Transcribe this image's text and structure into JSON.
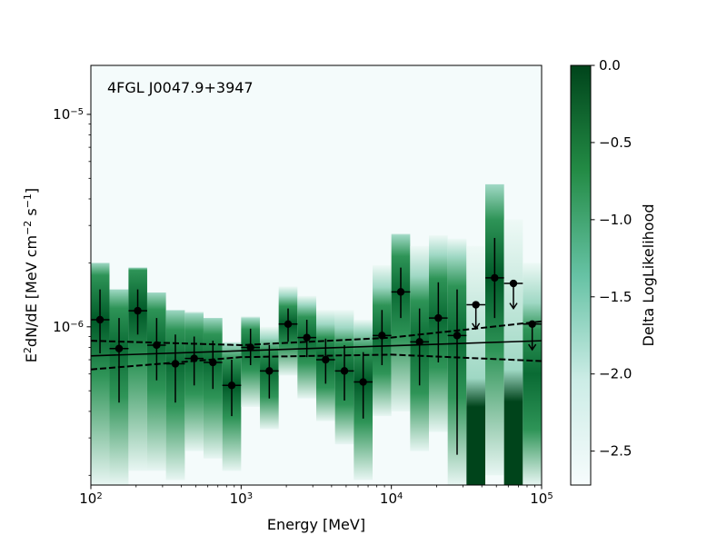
{
  "chart_data": {
    "type": "scatter",
    "title": "",
    "annotation": "4FGL J0047.9+3947",
    "xlabel": "Energy [MeV]",
    "ylabel_main": "E",
    "ylabel_sup1": "2",
    "ylabel_mid": "dN/dE [MeV cm",
    "ylabel_sup2": "−2",
    "ylabel_mid2": " s",
    "ylabel_sup3": "−1",
    "ylabel_end": "]",
    "x_scale": "log",
    "y_scale": "log",
    "xlim": [
      100,
      100000
    ],
    "ylim": [
      1.8e-07,
      1.7e-05
    ],
    "x_ticks": [
      {
        "value": 100,
        "base": "10",
        "exp": "2"
      },
      {
        "value": 1000,
        "base": "10",
        "exp": "3"
      },
      {
        "value": 10000,
        "base": "10",
        "exp": "4"
      },
      {
        "value": 100000,
        "base": "10",
        "exp": "5"
      }
    ],
    "y_ticks": [
      {
        "value": 1e-06,
        "base": "10",
        "exp": "−6"
      },
      {
        "value": 1e-05,
        "base": "10",
        "exp": "−5"
      }
    ],
    "points": [
      {
        "x": 115,
        "y": 1.08e-06,
        "ylo": 7.5e-07,
        "yhi": 1.5e-06,
        "xlo": 100,
        "xhi": 133,
        "ul": false
      },
      {
        "x": 154,
        "y": 7.9e-07,
        "ylo": 4.4e-07,
        "yhi": 1.1e-06,
        "xlo": 133,
        "xhi": 178,
        "ul": false
      },
      {
        "x": 205,
        "y": 1.19e-06,
        "ylo": 9.2e-07,
        "yhi": 1.5e-06,
        "xlo": 178,
        "xhi": 237,
        "ul": false
      },
      {
        "x": 274,
        "y": 8.2e-07,
        "ylo": 5.6e-07,
        "yhi": 1.1e-06,
        "xlo": 237,
        "xhi": 316,
        "ul": false
      },
      {
        "x": 365,
        "y": 6.7e-07,
        "ylo": 4.4e-07,
        "yhi": 9.2e-07,
        "xlo": 316,
        "xhi": 422,
        "ul": false
      },
      {
        "x": 487,
        "y": 7.1e-07,
        "ylo": 5.3e-07,
        "yhi": 9e-07,
        "xlo": 422,
        "xhi": 562,
        "ul": false
      },
      {
        "x": 649,
        "y": 6.8e-07,
        "ylo": 5.1e-07,
        "yhi": 8.6e-07,
        "xlo": 562,
        "xhi": 750,
        "ul": false
      },
      {
        "x": 866,
        "y": 5.3e-07,
        "ylo": 3.8e-07,
        "yhi": 7e-07,
        "xlo": 750,
        "xhi": 1000,
        "ul": false
      },
      {
        "x": 1155,
        "y": 8e-07,
        "ylo": 6.6e-07,
        "yhi": 9.8e-07,
        "xlo": 1000,
        "xhi": 1334,
        "ul": false
      },
      {
        "x": 1540,
        "y": 6.2e-07,
        "ylo": 4.6e-07,
        "yhi": 8.2e-07,
        "xlo": 1334,
        "xhi": 1778,
        "ul": false
      },
      {
        "x": 2054,
        "y": 1.03e-06,
        "ylo": 8.5e-07,
        "yhi": 1.22e-06,
        "xlo": 1778,
        "xhi": 2371,
        "ul": false
      },
      {
        "x": 2738,
        "y": 8.9e-07,
        "ylo": 7.2e-07,
        "yhi": 1.08e-06,
        "xlo": 2371,
        "xhi": 3162,
        "ul": false
      },
      {
        "x": 3652,
        "y": 7e-07,
        "ylo": 5.4e-07,
        "yhi": 8.8e-07,
        "xlo": 3162,
        "xhi": 4217,
        "ul": false
      },
      {
        "x": 4870,
        "y": 6.2e-07,
        "ylo": 4.5e-07,
        "yhi": 8.2e-07,
        "xlo": 4217,
        "xhi": 5623,
        "ul": false
      },
      {
        "x": 6494,
        "y": 5.5e-07,
        "ylo": 3.7e-07,
        "yhi": 7.6e-07,
        "xlo": 5623,
        "xhi": 7499,
        "ul": false
      },
      {
        "x": 8660,
        "y": 9.1e-07,
        "ylo": 6.6e-07,
        "yhi": 1.2e-06,
        "xlo": 7499,
        "xhi": 10000,
        "ul": false
      },
      {
        "x": 11548,
        "y": 1.46e-06,
        "ylo": 1.1e-06,
        "yhi": 1.9e-06,
        "xlo": 10000,
        "xhi": 13335,
        "ul": false
      },
      {
        "x": 15400,
        "y": 8.5e-07,
        "ylo": 5.3e-07,
        "yhi": 1.22e-06,
        "xlo": 13335,
        "xhi": 17783,
        "ul": false
      },
      {
        "x": 20535,
        "y": 1.1e-06,
        "ylo": 6.8e-07,
        "yhi": 1.62e-06,
        "xlo": 17783,
        "xhi": 23714,
        "ul": false
      },
      {
        "x": 27384,
        "y": 9.1e-07,
        "ylo": 2.5e-07,
        "yhi": 1.5e-06,
        "xlo": 23714,
        "xhi": 31623,
        "ul": false
      },
      {
        "x": 36517,
        "y": 1.27e-06,
        "ylo": 9.8e-07,
        "yhi": 1.27e-06,
        "xlo": 31623,
        "xhi": 42170,
        "ul": true
      },
      {
        "x": 48697,
        "y": 1.7e-06,
        "ylo": 1.1e-06,
        "yhi": 2.62e-06,
        "xlo": 42170,
        "xhi": 56234,
        "ul": false
      },
      {
        "x": 64938,
        "y": 1.6e-06,
        "ylo": 1.22e-06,
        "yhi": 1.6e-06,
        "xlo": 56234,
        "xhi": 74989,
        "ul": true
      },
      {
        "x": 86596,
        "y": 1.03e-06,
        "ylo": 7.8e-07,
        "yhi": 1.03e-06,
        "xlo": 74989,
        "xhi": 100000,
        "ul": true
      }
    ],
    "model_line": {
      "x": [
        100,
        100000
      ],
      "y": [
        7.3e-07,
        8.6e-07
      ]
    },
    "band_upper": {
      "x": [
        100,
        1000,
        10000,
        100000
      ],
      "y": [
        8.6e-07,
        8.2e-07,
        8.9e-07,
        1.06e-06
      ]
    },
    "band_lower": {
      "x": [
        100,
        1000,
        10000,
        100000
      ],
      "y": [
        6.3e-07,
        7.2e-07,
        7.4e-07,
        6.9e-07
      ]
    },
    "likelihood_columns": [
      {
        "xlo": 100,
        "xhi": 133,
        "ymin": 1.8e-07,
        "ymax": 2e-06,
        "peak": 1.08e-06,
        "intensity": 0.75
      },
      {
        "xlo": 133,
        "xhi": 178,
        "ymin": 1.8e-07,
        "ymax": 1.5e-06,
        "peak": 8e-07,
        "intensity": 0.6
      },
      {
        "xlo": 178,
        "xhi": 237,
        "ymin": 2.1e-07,
        "ymax": 1.9e-06,
        "peak": 1.19e-06,
        "intensity": 0.75
      },
      {
        "xlo": 237,
        "xhi": 316,
        "ymin": 2.1e-07,
        "ymax": 1.45e-06,
        "peak": 8.2e-07,
        "intensity": 0.65
      },
      {
        "xlo": 316,
        "xhi": 422,
        "ymin": 1.9e-07,
        "ymax": 1.2e-06,
        "peak": 6.7e-07,
        "intensity": 0.65
      },
      {
        "xlo": 422,
        "xhi": 562,
        "ymin": 2.6e-07,
        "ymax": 1.18e-06,
        "peak": 7.1e-07,
        "intensity": 0.6
      },
      {
        "xlo": 562,
        "xhi": 750,
        "ymin": 2.4e-07,
        "ymax": 1.1e-06,
        "peak": 6.8e-07,
        "intensity": 0.65
      },
      {
        "xlo": 750,
        "xhi": 1000,
        "ymin": 2.1e-07,
        "ymax": 8.5e-07,
        "peak": 5.3e-07,
        "intensity": 0.75
      },
      {
        "xlo": 1000,
        "xhi": 1334,
        "ymin": 4.2e-07,
        "ymax": 1.12e-06,
        "peak": 8e-07,
        "intensity": 0.7
      },
      {
        "xlo": 1334,
        "xhi": 1778,
        "ymin": 3.3e-07,
        "ymax": 1e-06,
        "peak": 6.2e-07,
        "intensity": 0.65
      },
      {
        "xlo": 1778,
        "xhi": 2371,
        "ymin": 5.9e-07,
        "ymax": 1.55e-06,
        "peak": 1.03e-06,
        "intensity": 0.75
      },
      {
        "xlo": 2371,
        "xhi": 3162,
        "ymin": 4.6e-07,
        "ymax": 1.4e-06,
        "peak": 8.9e-07,
        "intensity": 0.65
      },
      {
        "xlo": 3162,
        "xhi": 4217,
        "ymin": 3.6e-07,
        "ymax": 1.2e-06,
        "peak": 7e-07,
        "intensity": 0.6
      },
      {
        "xlo": 4217,
        "xhi": 5623,
        "ymin": 2.8e-07,
        "ymax": 1.2e-06,
        "peak": 6.2e-07,
        "intensity": 0.6
      },
      {
        "xlo": 5623,
        "xhi": 7499,
        "ymin": 1.9e-07,
        "ymax": 1.08e-06,
        "peak": 5.5e-07,
        "intensity": 0.75
      },
      {
        "xlo": 7499,
        "xhi": 10000,
        "ymin": 3.8e-07,
        "ymax": 1.95e-06,
        "peak": 9.1e-07,
        "intensity": 0.7
      },
      {
        "xlo": 10000,
        "xhi": 13335,
        "ymin": 4e-07,
        "ymax": 2.75e-06,
        "peak": 1.46e-06,
        "intensity": 0.7
      },
      {
        "xlo": 13335,
        "xhi": 17783,
        "ymin": 2.6e-07,
        "ymax": 2.4e-06,
        "peak": 8.5e-07,
        "intensity": 0.6
      },
      {
        "xlo": 17783,
        "xhi": 23714,
        "ymin": 3.2e-07,
        "ymax": 2.7e-06,
        "peak": 1.1e-06,
        "intensity": 0.65
      },
      {
        "xlo": 23714,
        "xhi": 31623,
        "ymin": 1.8e-07,
        "ymax": 2.6e-06,
        "peak": 9.1e-07,
        "intensity": 0.65
      },
      {
        "xlo": 31623,
        "xhi": 42170,
        "ymin": 1.8e-07,
        "ymax": 2.4e-06,
        "peak": 2.5e-07,
        "intensity": 1.0
      },
      {
        "xlo": 42170,
        "xhi": 56234,
        "ymin": 2e-07,
        "ymax": 4.7e-06,
        "peak": 1.7e-06,
        "intensity": 0.8
      },
      {
        "xlo": 56234,
        "xhi": 74989,
        "ymin": 1.8e-07,
        "ymax": 3.2e-06,
        "peak": 2.5e-07,
        "intensity": 1.0
      },
      {
        "xlo": 74989,
        "xhi": 100000,
        "ymin": 1.8e-07,
        "ymax": 2e-06,
        "peak": 6e-07,
        "intensity": 0.7
      }
    ],
    "colorbar": {
      "label": "Delta LogLikelihood",
      "range": [
        -2.72,
        0.0
      ],
      "ticks": [
        {
          "value": 0.0,
          "label": "0.0"
        },
        {
          "value": -0.5,
          "label": "−0.5"
        },
        {
          "value": -1.0,
          "label": "−1.0"
        },
        {
          "value": -1.5,
          "label": "−1.5"
        },
        {
          "value": -2.0,
          "label": "−2.0"
        },
        {
          "value": -2.5,
          "label": "−2.5"
        }
      ],
      "color_low": "#f4fbfb",
      "color_high": "#00441b"
    },
    "grid": false,
    "legend": "none"
  }
}
